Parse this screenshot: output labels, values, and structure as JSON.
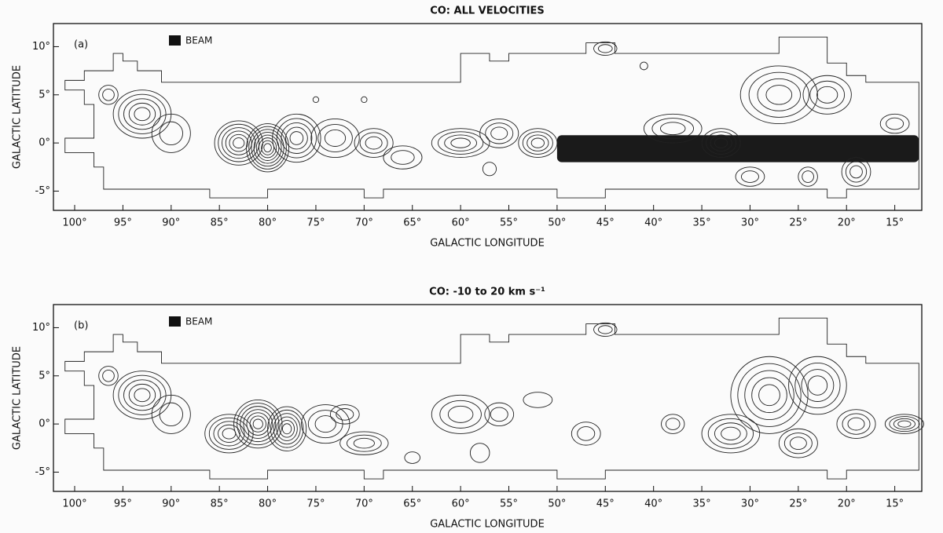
{
  "chart_data": [
    {
      "type": "contour",
      "title": "CO: ALL VELOCITIES",
      "panel_label": "(a)",
      "beam_label": "BEAM",
      "xlabel": "GALACTIC LONGITUDE",
      "ylabel": "GALACTIC LATITUDE",
      "xlim": [
        102.2,
        12.2
      ],
      "ylim": [
        -7,
        12.4
      ],
      "xticks": [
        {
          "value": 100,
          "label": "100°"
        },
        {
          "value": 95,
          "label": "95°"
        },
        {
          "value": 90,
          "label": "90°"
        },
        {
          "value": 85,
          "label": "85°"
        },
        {
          "value": 80,
          "label": "80°"
        },
        {
          "value": 75,
          "label": "75°"
        },
        {
          "value": 70,
          "label": "70°"
        },
        {
          "value": 65,
          "label": "65°"
        },
        {
          "value": 60,
          "label": "60°"
        },
        {
          "value": 55,
          "label": "55°"
        },
        {
          "value": 50,
          "label": "50°"
        },
        {
          "value": 45,
          "label": "45°"
        },
        {
          "value": 40,
          "label": "40°"
        },
        {
          "value": 35,
          "label": "35°"
        },
        {
          "value": 30,
          "label": "30°"
        },
        {
          "value": 25,
          "label": "25°"
        },
        {
          "value": 20,
          "label": "20°"
        },
        {
          "value": 15,
          "label": "15°"
        }
      ],
      "yticks": [
        {
          "value": 10,
          "label": "10°"
        },
        {
          "value": 5,
          "label": "5°"
        },
        {
          "value": 0,
          "label": "0°"
        },
        {
          "value": -5,
          "label": "-5°"
        }
      ]
    },
    {
      "type": "contour",
      "title": "CO: -10 to 20 km s⁻¹",
      "panel_label": "(b)",
      "beam_label": "BEAM",
      "xlabel": "GALACTIC LONGITUDE",
      "ylabel": "GALACTIC LATITUDE",
      "xlim": [
        102.2,
        12.2
      ],
      "ylim": [
        -7,
        12.4
      ],
      "xticks": [
        {
          "value": 100,
          "label": "100°"
        },
        {
          "value": 95,
          "label": "95°"
        },
        {
          "value": 90,
          "label": "90°"
        },
        {
          "value": 85,
          "label": "85°"
        },
        {
          "value": 80,
          "label": "80°"
        },
        {
          "value": 75,
          "label": "75°"
        },
        {
          "value": 70,
          "label": "70°"
        },
        {
          "value": 65,
          "label": "65°"
        },
        {
          "value": 60,
          "label": "60°"
        },
        {
          "value": 55,
          "label": "55°"
        },
        {
          "value": 50,
          "label": "50°"
        },
        {
          "value": 45,
          "label": "45°"
        },
        {
          "value": 40,
          "label": "40°"
        },
        {
          "value": 35,
          "label": "35°"
        },
        {
          "value": 30,
          "label": "30°"
        },
        {
          "value": 25,
          "label": "25°"
        },
        {
          "value": 20,
          "label": "20°"
        },
        {
          "value": 15,
          "label": "15°"
        }
      ],
      "yticks": [
        {
          "value": 10,
          "label": "10°"
        },
        {
          "value": 5,
          "label": "5°"
        },
        {
          "value": 0,
          "label": "0°"
        },
        {
          "value": -5,
          "label": "-5°"
        }
      ]
    }
  ]
}
